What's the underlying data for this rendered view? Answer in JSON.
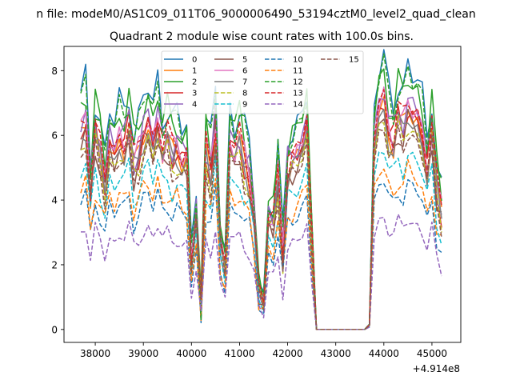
{
  "figure": {
    "suptitle": "n file: modeM0/AS1C09_011T06_9000006490_53194cztM0_level2_quad_clean",
    "title": "Quadrant 2 module wise count rates with 100.0s bins."
  },
  "chart_data": {
    "type": "line",
    "title": "Quadrant 2 module wise count rates with 100.0s bins.",
    "xlabel": "",
    "ylabel": "",
    "x_offset_label": "+4.914e8",
    "xlim": [
      37350,
      45600
    ],
    "ylim": [
      -0.4,
      8.75
    ],
    "xticks": [
      38000,
      39000,
      40000,
      41000,
      42000,
      43000,
      44000,
      45000
    ],
    "xtick_labels": [
      "38000",
      "39000",
      "40000",
      "41000",
      "42000",
      "43000",
      "44000",
      "45000"
    ],
    "yticks": [
      0,
      2,
      4,
      6,
      8
    ],
    "ytick_labels": [
      "0",
      "2",
      "4",
      "6",
      "8"
    ],
    "grid": false,
    "legend_position": "top-center",
    "legend_columns": 4,
    "profile_x": [
      37700,
      37800,
      37900,
      38000,
      38100,
      38200,
      38300,
      38400,
      38500,
      38600,
      38700,
      38800,
      38900,
      39000,
      39100,
      39200,
      39300,
      39400,
      39500,
      39600,
      39700,
      39800,
      39900,
      40000,
      40100,
      40200,
      40300,
      40400,
      40500,
      40600,
      40700,
      40800,
      40900,
      41000,
      41100,
      41200,
      41300,
      41400,
      41500,
      41600,
      41700,
      41800,
      41900,
      42000,
      42100,
      42200,
      42300,
      42400,
      42500,
      42600,
      42700,
      42800,
      42900,
      43000,
      43100,
      43200,
      43300,
      43400,
      43500,
      43600,
      43700,
      43800,
      43900,
      44000,
      44100,
      44200,
      44300,
      44400,
      44500,
      44600,
      44700,
      44800,
      44900,
      45000,
      45100,
      45200
    ],
    "profile_y": [
      0.86,
      0.92,
      0.62,
      0.87,
      0.78,
      0.65,
      0.82,
      0.76,
      0.84,
      0.82,
      0.9,
      0.72,
      0.78,
      0.86,
      0.9,
      0.82,
      0.93,
      0.8,
      0.84,
      0.78,
      0.8,
      0.74,
      0.76,
      0.3,
      0.52,
      0.1,
      0.78,
      0.7,
      0.9,
      0.38,
      0.28,
      0.84,
      0.78,
      0.82,
      0.74,
      0.68,
      0.5,
      0.18,
      0.12,
      0.5,
      0.46,
      0.66,
      0.34,
      0.7,
      0.74,
      0.78,
      0.82,
      0.9,
      0.4,
      0.0,
      0.0,
      0.0,
      0.0,
      0.0,
      0.0,
      0.0,
      0.0,
      0.0,
      0.0,
      0.0,
      0.02,
      0.84,
      0.96,
      1.0,
      0.88,
      0.84,
      0.94,
      0.9,
      0.98,
      0.94,
      0.92,
      0.86,
      0.72,
      0.88,
      0.62,
      0.52
    ],
    "series": [
      {
        "name": "0",
        "color": "#1f77b4",
        "dash": "solid",
        "level": 8.3,
        "phase": 0.0
      },
      {
        "name": "1",
        "color": "#ff7f0e",
        "dash": "solid",
        "level": 6.9,
        "phase": 1.3
      },
      {
        "name": "2",
        "color": "#2ca02c",
        "dash": "solid",
        "level": 8.0,
        "phase": 2.1
      },
      {
        "name": "3",
        "color": "#d62728",
        "dash": "solid",
        "level": 7.0,
        "phase": 3.4
      },
      {
        "name": "4",
        "color": "#9467bd",
        "dash": "solid",
        "level": 7.3,
        "phase": 4.2
      },
      {
        "name": "5",
        "color": "#8c564b",
        "dash": "solid",
        "level": 6.6,
        "phase": 5.0
      },
      {
        "name": "6",
        "color": "#e377c2",
        "dash": "solid",
        "level": 7.1,
        "phase": 0.7
      },
      {
        "name": "7",
        "color": "#7f7f7f",
        "dash": "solid",
        "level": 6.7,
        "phase": 1.9
      },
      {
        "name": "8",
        "color": "#bcbd22",
        "dash": "dashed",
        "level": 6.5,
        "phase": 2.7
      },
      {
        "name": "9",
        "color": "#17becf",
        "dash": "dashed",
        "level": 5.6,
        "phase": 3.9
      },
      {
        "name": "10",
        "color": "#1f77b4",
        "dash": "dashed",
        "level": 4.6,
        "phase": 4.6
      },
      {
        "name": "11",
        "color": "#ff7f0e",
        "dash": "dashed",
        "level": 5.0,
        "phase": 5.5
      },
      {
        "name": "12",
        "color": "#2ca02c",
        "dash": "dashed",
        "level": 8.1,
        "phase": 0.3
      },
      {
        "name": "13",
        "color": "#d62728",
        "dash": "dashed",
        "level": 7.2,
        "phase": 1.6
      },
      {
        "name": "14",
        "color": "#9467bd",
        "dash": "dashed",
        "level": 3.5,
        "phase": 2.5
      },
      {
        "name": "15",
        "color": "#8c564b",
        "dash": "dashed",
        "level": 6.3,
        "phase": 3.1
      }
    ]
  }
}
